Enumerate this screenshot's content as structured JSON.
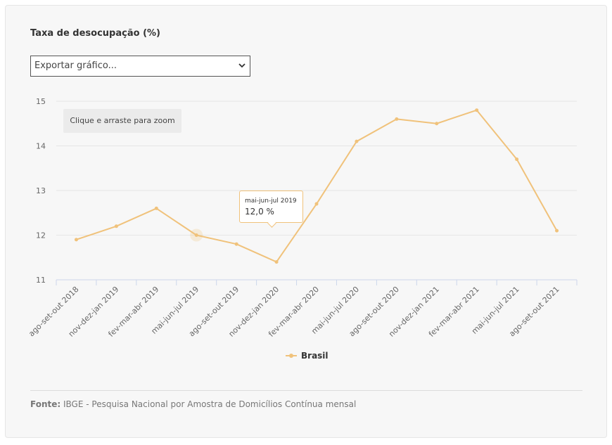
{
  "header": {
    "title": "Taxa de desocupação (%)",
    "export_select": "Exportar gráfico..."
  },
  "zoom_hint": "Clique e arraste para zoom",
  "tooltip": {
    "label": "mai-jun-jul 2019",
    "value": "12,0 %"
  },
  "legend": {
    "label": "Brasil"
  },
  "footer": {
    "source_label": "Fonte:",
    "source_text": "IBGE - Pesquisa Nacional por Amostra de Domicílios Contínua mensal"
  },
  "colors": {
    "series": "#f0c27b",
    "grid": "#e6e6e6",
    "axis": "#ccd6eb"
  },
  "chart_data": {
    "type": "line",
    "title": "Taxa de desocupação (%)",
    "xlabel": "",
    "ylabel": "",
    "ylim": [
      11,
      15
    ],
    "yticks": [
      "11",
      "12",
      "13",
      "14",
      "15"
    ],
    "grid": true,
    "legend_position": "bottom-center",
    "categories": [
      "ago-set-out 2018",
      "nov-dez-jan 2019",
      "fev-mar-abr 2019",
      "mai-jun-jul 2019",
      "ago-set-out 2019",
      "nov-dez-jan 2020",
      "fev-mar-abr 2020",
      "mai-jun-jul 2020",
      "ago-set-out 2020",
      "nov-dez-jan 2021",
      "fev-mar-abr 2021",
      "mai-jun-jul 2021",
      "ago-set-out 2021"
    ],
    "series": [
      {
        "name": "Brasil",
        "values": [
          11.9,
          12.2,
          12.6,
          12.0,
          11.8,
          11.4,
          12.7,
          14.1,
          14.6,
          14.5,
          14.8,
          13.7,
          12.1
        ]
      }
    ],
    "highlighted_point": {
      "category": "mai-jun-jul 2019",
      "value": 12.0
    }
  }
}
